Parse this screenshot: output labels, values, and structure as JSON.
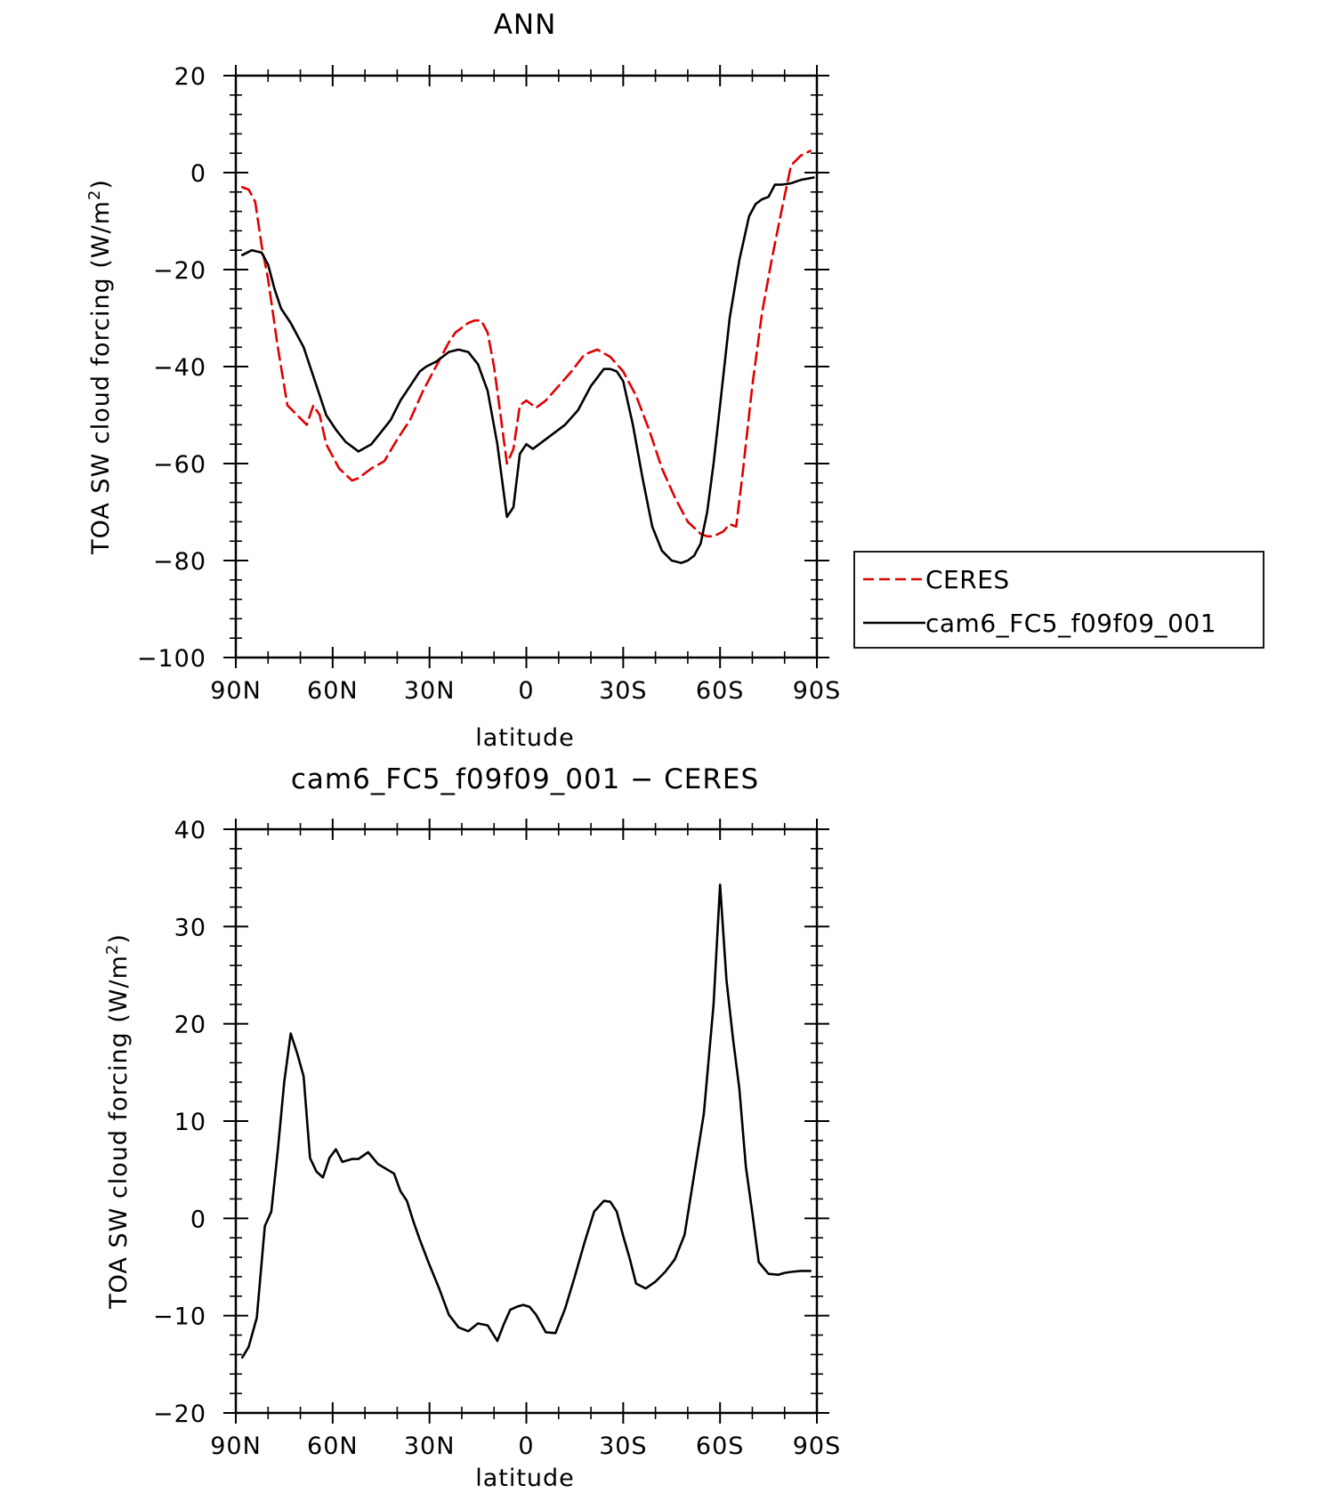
{
  "chart_data": [
    {
      "type": "line",
      "title": "ANN",
      "xlabel": "latitude",
      "ylabel": "TOA SW cloud forcing (W/m",
      "ylabel_sup": "2",
      "ylabel_close": ")",
      "xlim": [
        90,
        -90
      ],
      "ylim": [
        -100,
        20
      ],
      "xticks": [
        90,
        60,
        30,
        0,
        -30,
        -60,
        -90
      ],
      "xtick_labels": [
        "90N",
        "60N",
        "30N",
        "0",
        "30S",
        "60S",
        "90S"
      ],
      "yticks": [
        20,
        0,
        -20,
        -40,
        -60,
        -80,
        -100
      ],
      "ytick_labels": [
        "20",
        "0",
        "−20",
        "−40",
        "−60",
        "−80",
        "−100"
      ],
      "grid": false,
      "legend_position": "right",
      "series": [
        {
          "name": "CERES",
          "color": "#e00000",
          "dash": "dashed",
          "x": [
            88,
            86,
            84,
            82,
            80,
            77,
            74,
            71,
            68,
            66,
            64,
            62,
            58,
            54,
            52,
            48,
            44,
            40,
            36,
            32,
            28,
            24,
            22,
            18,
            16,
            14,
            12,
            10,
            8,
            6,
            4,
            2,
            0,
            -3,
            -6,
            -10,
            -14,
            -18,
            -22,
            -26,
            -30,
            -34,
            -38,
            -42,
            -46,
            -50,
            -54,
            -56,
            -58,
            -61,
            -63,
            -65,
            -67,
            -70,
            -73,
            -76,
            -79,
            -82,
            -85,
            -88
          ],
          "y": [
            -3,
            -3.5,
            -6,
            -15,
            -22,
            -36,
            -48,
            -50,
            -52,
            -48,
            -50,
            -56,
            -61,
            -63.5,
            -63,
            -61,
            -59.5,
            -55,
            -51,
            -45,
            -40,
            -35,
            -33,
            -31,
            -30.5,
            -30.5,
            -33,
            -40,
            -50,
            -60,
            -57,
            -48,
            -47,
            -48.5,
            -47,
            -44,
            -41,
            -37.5,
            -36.5,
            -38,
            -41,
            -46,
            -53,
            -61,
            -67,
            -72,
            -74.5,
            -75,
            -75,
            -74,
            -72.5,
            -73,
            -62,
            -44,
            -29,
            -18,
            -8,
            1.5,
            3.5,
            4.5
          ]
        },
        {
          "name": "cam6_FC5_f09f09_001",
          "color": "#000000",
          "dash": "solid",
          "x": [
            88,
            85,
            82,
            80,
            78,
            76,
            73,
            69,
            66,
            62,
            59,
            56,
            52,
            48,
            45,
            42,
            39,
            36,
            33,
            31,
            28,
            24,
            21,
            18,
            15,
            12,
            9,
            6,
            4,
            2,
            0,
            -2,
            -4,
            -8,
            -12,
            -16,
            -20,
            -24,
            -26,
            -28,
            -30,
            -33,
            -36,
            -39,
            -42,
            -45,
            -48,
            -50,
            -52,
            -54,
            -56,
            -58,
            -60,
            -63,
            -66,
            -69,
            -71,
            -73,
            -75,
            -77,
            -79,
            -82,
            -85,
            -89
          ],
          "y": [
            -17,
            -16,
            -16.5,
            -19,
            -24,
            -28,
            -31,
            -36,
            -42,
            -50,
            -53,
            -55.5,
            -57.5,
            -56,
            -53.5,
            -51,
            -47,
            -44,
            -41,
            -40,
            -39,
            -37,
            -36.5,
            -37,
            -39.5,
            -45,
            -56,
            -71,
            -69,
            -58,
            -56,
            -57,
            -56,
            -54,
            -52,
            -49,
            -44,
            -40.5,
            -40.5,
            -41,
            -43,
            -52,
            -63,
            -73,
            -78,
            -80,
            -80.5,
            -80,
            -79,
            -76.5,
            -70,
            -60,
            -48,
            -30,
            -18,
            -9,
            -6.5,
            -5.5,
            -5,
            -2.5,
            -2.5,
            -2.2,
            -1.5,
            -1
          ]
        }
      ]
    },
    {
      "type": "line",
      "title": "cam6_FC5_f09f09_001 − CERES",
      "xlabel": "latitude",
      "ylabel": "TOA SW cloud forcing (W/m",
      "ylabel_sup": "2",
      "ylabel_close": ")",
      "xlim": [
        90,
        -90
      ],
      "ylim": [
        -20,
        40
      ],
      "xticks": [
        90,
        60,
        30,
        0,
        -30,
        -60,
        -90
      ],
      "xtick_labels": [
        "90N",
        "60N",
        "30N",
        "0",
        "30S",
        "60S",
        "90S"
      ],
      "yticks": [
        40,
        30,
        20,
        10,
        0,
        -10,
        -20
      ],
      "ytick_labels": [
        "40",
        "30",
        "20",
        "10",
        "0",
        "−10",
        "−20"
      ],
      "grid": false,
      "series": [
        {
          "color": "#000000",
          "dash": "solid",
          "x": [
            88,
            86,
            83.5,
            81,
            79,
            77,
            75,
            73,
            71,
            69,
            67,
            65,
            63,
            61,
            59,
            57,
            54,
            52,
            49,
            46,
            43,
            41,
            39,
            37,
            35,
            33,
            30,
            27,
            24,
            21,
            18,
            15,
            12,
            9,
            7,
            5,
            3,
            1,
            -1,
            -3,
            -6,
            -9,
            -12,
            -15,
            -18,
            -21,
            -24,
            -26,
            -28,
            -30,
            -32,
            -34,
            -37,
            -40,
            -43,
            -46,
            -49,
            -52,
            -55,
            -58,
            -60,
            -62,
            -64,
            -66,
            -68,
            -70,
            -72,
            -75,
            -78,
            -80,
            -82,
            -85,
            -88
          ],
          "y": [
            -14.3,
            -13.2,
            -10.2,
            -0.8,
            0.7,
            7,
            14,
            19,
            17,
            14.6,
            6.2,
            4.8,
            4.2,
            6.2,
            7.1,
            5.8,
            6.1,
            6.1,
            6.8,
            5.6,
            5,
            4.6,
            2.8,
            1.8,
            -0.3,
            -2.2,
            -4.8,
            -7.2,
            -9.9,
            -11.2,
            -11.6,
            -10.8,
            -11,
            -12.6,
            -10.9,
            -9.4,
            -9.1,
            -8.9,
            -9.1,
            -9.9,
            -11.7,
            -11.8,
            -9.3,
            -6,
            -2.5,
            0.7,
            1.8,
            1.7,
            0.7,
            -1.8,
            -4.1,
            -6.7,
            -7.2,
            -6.5,
            -5.5,
            -4.2,
            -1.7,
            4.5,
            10.8,
            22,
            34.3,
            24.5,
            18.5,
            13.3,
            5.3,
            0.6,
            -4.5,
            -5.7,
            -5.8,
            -5.6,
            -5.5,
            -5.4,
            -5.4
          ]
        }
      ]
    }
  ]
}
